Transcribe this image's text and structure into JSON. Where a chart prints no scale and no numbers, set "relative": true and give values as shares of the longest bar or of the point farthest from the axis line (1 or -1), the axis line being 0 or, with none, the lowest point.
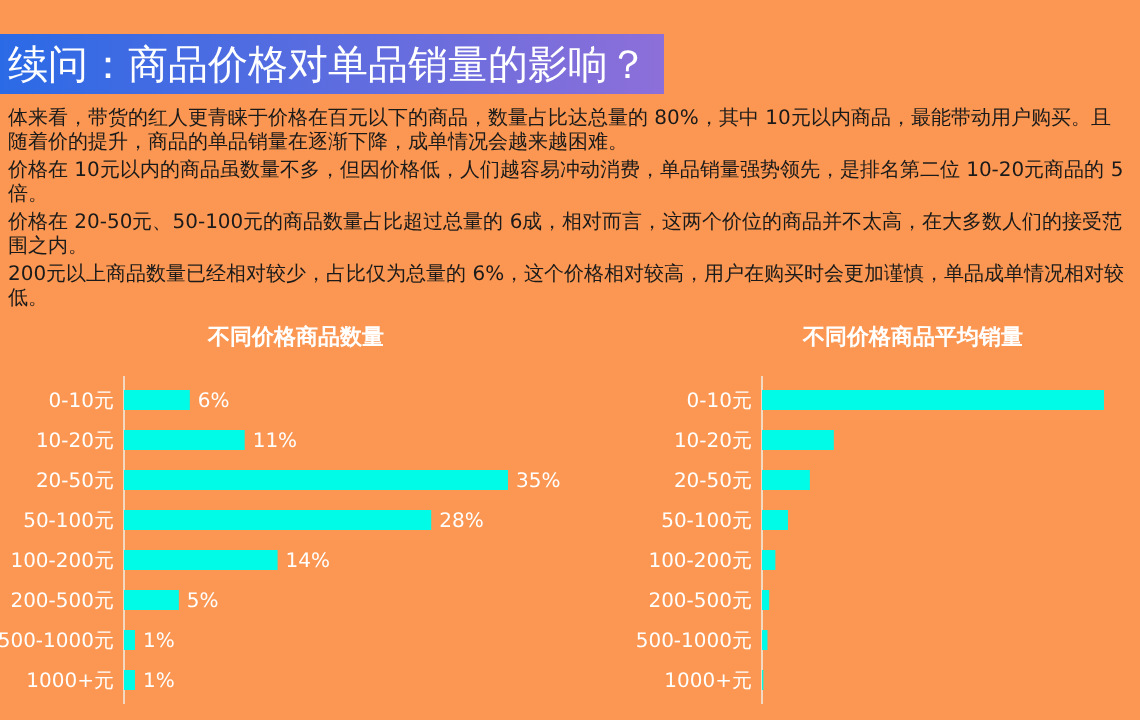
{
  "chart_data": [
    {
      "type": "other",
      "title": "续问：商品价格对单品销量的影响？",
      "annotations": [
        "体来看，带货的红人更青睐于价格在百元以下的商品，数量占比达总量的 80%，其中 10元以内商品，最能带动用户购买。且随着价的提升，商品的单品销量在逐渐下降，成单情况会越来越困难。",
        "价格在 10元以内的商品虽数量不多，但因价格低，人们越容易冲动消费，单品销量强势领先，是排名第二位 10-20元商品的 5倍。",
        "价格在 20-50元、50-100元的商品数量占比超过总量的 6成，相对而言，这两个价位的商品并不太高，在大多数人们的接受范围之内。",
        "200元以上商品数量已经相对较少，占比仅为总量的 6%，这个价格相对较高，用户在购买时会更加谨慎，单品成单情况相对较低。"
      ]
    },
    {
      "type": "bar",
      "orientation": "horizontal",
      "title": "不同价格商品数量",
      "categories": [
        "0-10元",
        "10-20元",
        "20-50元",
        "50-100元",
        "100-200元",
        "200-500元",
        "500-1000元",
        "1000+元"
      ],
      "values": [
        6,
        11,
        35,
        28,
        14,
        5,
        1,
        1
      ],
      "value_labels": [
        "6%",
        "11%",
        "35%",
        "28%",
        "14%",
        "5%",
        "1%",
        "1%"
      ],
      "color": "#00fbe6"
    },
    {
      "type": "bar",
      "orientation": "horizontal",
      "relative": true,
      "title": "不同价格商品平均销量",
      "categories": [
        "0-10元",
        "10-20元",
        "20-50元",
        "50-100元",
        "100-200元",
        "200-500元",
        "500-1000元",
        "1000+元"
      ],
      "values": [
        1,
        0.21,
        0.14,
        0.076,
        0.039,
        0.021,
        0.016,
        0.004
      ],
      "color": "#00fbe6"
    }
  ]
}
